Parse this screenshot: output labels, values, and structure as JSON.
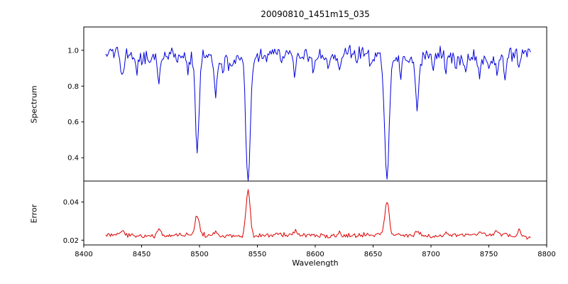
{
  "figure": {
    "background": "#ffffff",
    "spine_color": "#000000",
    "tick_label_color": "#000000"
  },
  "chart_data": {
    "type": "line",
    "title": "20090810_1451m15_035",
    "xlabel": "Wavelength",
    "xlim": [
      8400,
      8800
    ],
    "xticks": [
      {
        "value": 8400,
        "label": "8400"
      },
      {
        "value": 8450,
        "label": "8450"
      },
      {
        "value": 8500,
        "label": "8500"
      },
      {
        "value": 8550,
        "label": "8550"
      },
      {
        "value": 8600,
        "label": "8600"
      },
      {
        "value": 8650,
        "label": "8650"
      },
      {
        "value": 8700,
        "label": "8700"
      },
      {
        "value": 8750,
        "label": "8750"
      },
      {
        "value": 8800,
        "label": "8800"
      }
    ],
    "grid": false,
    "legend": "none",
    "panels": [
      {
        "name": "spectrum",
        "ylabel": "Spectrum",
        "ylim": [
          0.27,
          1.13
        ],
        "yticks": [
          {
            "value": 0.4,
            "label": "0.4"
          },
          {
            "value": 0.6,
            "label": "0.6"
          },
          {
            "value": 0.8,
            "label": "0.8"
          },
          {
            "value": 1.0,
            "label": "1.0"
          }
        ],
        "color": "#0000dd",
        "synthesis": {
          "seed": 20090810,
          "x_start": 8419,
          "x_end": 8786,
          "step": 1,
          "base": 0.97,
          "noise_sigma": 0.02,
          "clamp_max": 1.07,
          "wiggles": [
            {
              "amp": 0.012,
              "period": 11.5,
              "phase": 0.0
            },
            {
              "amp": 0.008,
              "period": 31.0,
              "phase": 1.3
            }
          ],
          "features": [
            {
              "center": 8433,
              "amplitude": -0.13,
              "sigma": 1.2
            },
            {
              "center": 8446,
              "amplitude": -0.08,
              "sigma": 1.0
            },
            {
              "center": 8465,
              "amplitude": -0.14,
              "sigma": 1.2
            },
            {
              "center": 8481,
              "amplitude": -0.06,
              "sigma": 1.0
            },
            {
              "center": 8490,
              "amplitude": -0.07,
              "sigma": 1.0
            },
            {
              "center": 8498,
              "amplitude": -0.53,
              "sigma": 1.6
            },
            {
              "center": 8514,
              "amplitude": -0.2,
              "sigma": 1.3
            },
            {
              "center": 8520,
              "amplitude": -0.1,
              "sigma": 1.0
            },
            {
              "center": 8527,
              "amplitude": -0.09,
              "sigma": 1.0
            },
            {
              "center": 8542,
              "amplitude": -0.68,
              "sigma": 2.0
            },
            {
              "center": 8558,
              "amplitude": -0.07,
              "sigma": 1.0
            },
            {
              "center": 8571,
              "amplitude": -0.06,
              "sigma": 1.0
            },
            {
              "center": 8582,
              "amplitude": -0.11,
              "sigma": 1.2
            },
            {
              "center": 8598,
              "amplitude": -0.08,
              "sigma": 1.0
            },
            {
              "center": 8611,
              "amplitude": -0.07,
              "sigma": 1.0
            },
            {
              "center": 8621,
              "amplitude": -0.11,
              "sigma": 1.2
            },
            {
              "center": 8636,
              "amplitude": -0.06,
              "sigma": 1.0
            },
            {
              "center": 8648,
              "amplitude": -0.08,
              "sigma": 1.0
            },
            {
              "center": 8662,
              "amplitude": -0.66,
              "sigma": 2.0
            },
            {
              "center": 8674,
              "amplitude": -0.1,
              "sigma": 1.0
            },
            {
              "center": 8688,
              "amplitude": -0.27,
              "sigma": 1.4
            },
            {
              "center": 8702,
              "amplitude": -0.08,
              "sigma": 1.0
            },
            {
              "center": 8713,
              "amplitude": -0.1,
              "sigma": 1.1
            },
            {
              "center": 8722,
              "amplitude": -0.06,
              "sigma": 1.0
            },
            {
              "center": 8730,
              "amplitude": -0.08,
              "sigma": 1.0
            },
            {
              "center": 8742,
              "amplitude": -0.09,
              "sigma": 1.0
            },
            {
              "center": 8750,
              "amplitude": -0.06,
              "sigma": 1.0
            },
            {
              "center": 8757,
              "amplitude": -0.1,
              "sigma": 1.1
            },
            {
              "center": 8764,
              "amplitude": -0.12,
              "sigma": 1.1
            },
            {
              "center": 8776,
              "amplitude": -0.1,
              "sigma": 1.0
            }
          ]
        }
      },
      {
        "name": "error",
        "ylabel": "Error",
        "ylim": [
          0.0175,
          0.051
        ],
        "yticks": [
          {
            "value": 0.02,
            "label": "0.02"
          },
          {
            "value": 0.04,
            "label": "0.04"
          }
        ],
        "color": "#dd0000",
        "synthesis": {
          "seed": 1451035,
          "x_start": 8419,
          "x_end": 8786,
          "step": 1,
          "base": 0.0225,
          "noise_sigma": 0.0006,
          "clamp_max": 0.0505,
          "wiggles": [
            {
              "amp": 0.0004,
              "period": 13.0,
              "phase": 0.5
            }
          ],
          "features": [
            {
              "center": 8433,
              "amplitude": 0.003,
              "sigma": 1.5
            },
            {
              "center": 8465,
              "amplitude": 0.0035,
              "sigma": 1.5
            },
            {
              "center": 8498,
              "amplitude": 0.011,
              "sigma": 1.6
            },
            {
              "center": 8514,
              "amplitude": 0.0025,
              "sigma": 1.3
            },
            {
              "center": 8542,
              "amplitude": 0.024,
              "sigma": 1.8
            },
            {
              "center": 8582,
              "amplitude": 0.0018,
              "sigma": 1.2
            },
            {
              "center": 8621,
              "amplitude": 0.0015,
              "sigma": 1.2
            },
            {
              "center": 8662,
              "amplitude": 0.018,
              "sigma": 1.8
            },
            {
              "center": 8688,
              "amplitude": 0.003,
              "sigma": 1.4
            },
            {
              "center": 8713,
              "amplitude": 0.0015,
              "sigma": 1.2
            },
            {
              "center": 8742,
              "amplitude": 0.0015,
              "sigma": 1.2
            },
            {
              "center": 8757,
              "amplitude": 0.002,
              "sigma": 1.2
            },
            {
              "center": 8764,
              "amplitude": 0.002,
              "sigma": 1.2
            },
            {
              "center": 8776,
              "amplitude": 0.0025,
              "sigma": 1.2
            }
          ]
        }
      }
    ]
  }
}
